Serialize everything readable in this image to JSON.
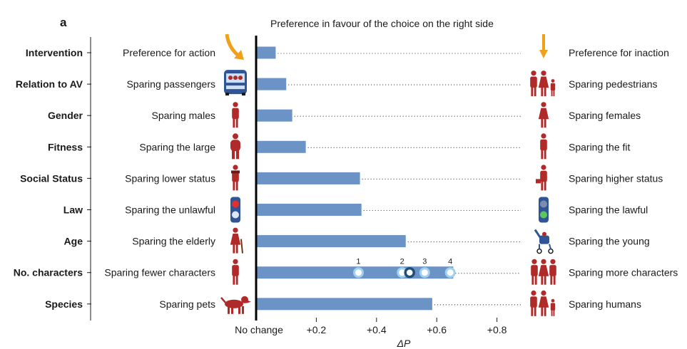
{
  "panel_label": "a",
  "chart_data": {
    "type": "bar",
    "orientation": "horizontal",
    "title": "Preference in favour of the choice on the right side",
    "xlabel": "ΔP",
    "xlim": [
      0,
      0.9
    ],
    "xticks": [
      {
        "value": 0,
        "label": "No change"
      },
      {
        "value": 0.2,
        "label": "+0.2"
      },
      {
        "value": 0.4,
        "label": "+0.4"
      },
      {
        "value": 0.6,
        "label": "+0.6"
      },
      {
        "value": 0.8,
        "label": "+0.8"
      }
    ],
    "bar_color": "#6b93c5",
    "categories": [
      {
        "dimension": "Intervention",
        "left": "Preference for action",
        "right": "Preference for inaction",
        "value": 0.065,
        "left_icon": "swerving-arrow-icon",
        "right_icon": "straight-arrow-icon"
      },
      {
        "dimension": "Relation to AV",
        "left": "Sparing passengers",
        "right": "Sparing pedestrians",
        "value": 0.1,
        "left_icon": "car-passengers-icon",
        "right_icon": "pedestrian-group-icon"
      },
      {
        "dimension": "Gender",
        "left": "Sparing males",
        "right": "Sparing females",
        "value": 0.12,
        "left_icon": "male-figure-icon",
        "right_icon": "female-figure-icon"
      },
      {
        "dimension": "Fitness",
        "left": "Sparing the large",
        "right": "Sparing the fit",
        "value": 0.165,
        "left_icon": "large-figure-icon",
        "right_icon": "fit-figure-icon"
      },
      {
        "dimension": "Social Status",
        "left": "Sparing lower status",
        "right": "Sparing higher status",
        "value": 0.345,
        "left_icon": "homeless-figure-icon",
        "right_icon": "executive-figure-icon"
      },
      {
        "dimension": "Law",
        "left": "Sparing the unlawful",
        "right": "Sparing the lawful",
        "value": 0.35,
        "left_icon": "red-light-icon",
        "right_icon": "green-light-icon"
      },
      {
        "dimension": "Age",
        "left": "Sparing the elderly",
        "right": "Sparing the young",
        "value": 0.497,
        "left_icon": "elderly-figure-icon",
        "right_icon": "stroller-icon"
      },
      {
        "dimension": "No. characters",
        "left": "Sparing fewer characters",
        "right": "Sparing more characters",
        "value": 0.655,
        "left_icon": "single-figure-icon",
        "right_icon": "three-figures-icon"
      },
      {
        "dimension": "Species",
        "left": "Sparing pets",
        "right": "Sparing humans",
        "value": 0.585,
        "left_icon": "dog-icon",
        "right_icon": "human-group-icon"
      }
    ],
    "character_markers": [
      {
        "label": "1",
        "value": 0.34
      },
      {
        "label": "2",
        "value": 0.485
      },
      {
        "label": "",
        "value": 0.51,
        "highlight": true
      },
      {
        "label": "3",
        "value": 0.56
      },
      {
        "label": "4",
        "value": 0.645
      }
    ],
    "grid": false
  }
}
